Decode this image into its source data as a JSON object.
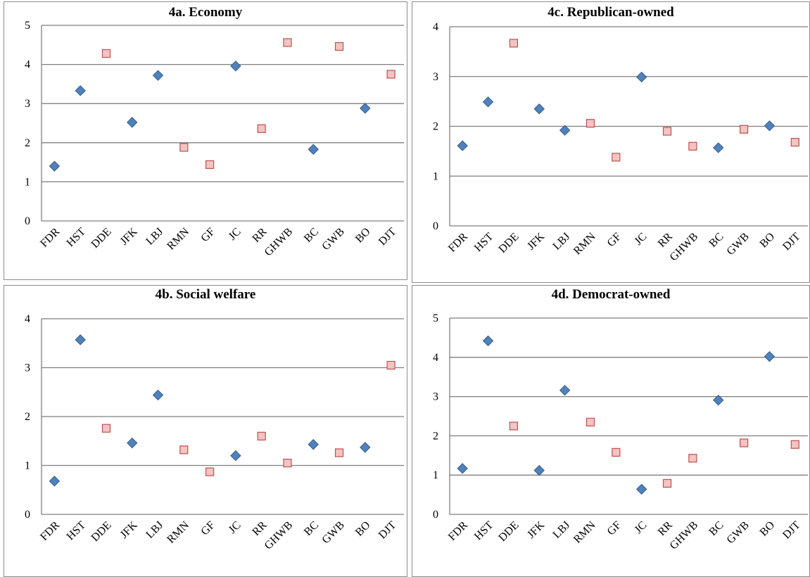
{
  "chart_data": [
    {
      "id": "a",
      "type": "scatter",
      "title": "4a. Economy",
      "categories": [
        "FDR",
        "HST",
        "DDE",
        "JFK",
        "LBJ",
        "RMN",
        "GF",
        "JC",
        "RR",
        "GHWB",
        "BC",
        "GWB",
        "BO",
        "DJT"
      ],
      "values": [
        1.4,
        3.33,
        4.28,
        2.52,
        3.72,
        1.88,
        1.44,
        3.96,
        2.36,
        4.56,
        1.83,
        4.46,
        2.88,
        3.75
      ],
      "party": [
        "D",
        "D",
        "R",
        "D",
        "D",
        "R",
        "R",
        "D",
        "R",
        "R",
        "D",
        "R",
        "D",
        "R"
      ],
      "ylim": [
        0,
        5
      ],
      "yticks": [
        0,
        1,
        2,
        3,
        4,
        5
      ],
      "grid": true,
      "legend": "none"
    },
    {
      "id": "c",
      "type": "scatter",
      "title": "4c. Republican-owned",
      "categories": [
        "FDR",
        "HST",
        "DDE",
        "JFK",
        "LBJ",
        "RMN",
        "GF",
        "JC",
        "RR",
        "GHWB",
        "BC",
        "GWB",
        "BO",
        "DJT"
      ],
      "values": [
        1.61,
        2.49,
        3.67,
        2.35,
        1.92,
        2.06,
        1.38,
        2.99,
        1.9,
        1.6,
        1.57,
        1.94,
        2.01,
        1.68
      ],
      "party": [
        "D",
        "D",
        "R",
        "D",
        "D",
        "R",
        "R",
        "D",
        "R",
        "R",
        "D",
        "R",
        "D",
        "R"
      ],
      "ylim": [
        0,
        4
      ],
      "yticks": [
        0,
        1,
        2,
        3,
        4
      ],
      "grid": true,
      "legend": "none"
    },
    {
      "id": "b",
      "type": "scatter",
      "title": "4b. Social welfare",
      "categories": [
        "FDR",
        "HST",
        "DDE",
        "JFK",
        "LBJ",
        "RMN",
        "GF",
        "JC",
        "RR",
        "GHWB",
        "BC",
        "GWB",
        "BO",
        "DJT"
      ],
      "values": [
        0.68,
        3.57,
        1.76,
        1.46,
        2.44,
        1.32,
        0.87,
        1.2,
        1.6,
        1.05,
        1.43,
        1.26,
        1.37,
        3.05
      ],
      "party": [
        "D",
        "D",
        "R",
        "D",
        "D",
        "R",
        "R",
        "D",
        "R",
        "R",
        "D",
        "R",
        "D",
        "R"
      ],
      "ylim": [
        0,
        4
      ],
      "yticks": [
        0,
        1,
        2,
        3,
        4
      ],
      "grid": true,
      "legend": "none"
    },
    {
      "id": "d",
      "type": "scatter",
      "title": "4d. Democrat-owned",
      "categories": [
        "FDR",
        "HST",
        "DDE",
        "JFK",
        "LBJ",
        "RMN",
        "GF",
        "JC",
        "RR",
        "GHWB",
        "BC",
        "GWB",
        "BO",
        "DJT"
      ],
      "values": [
        1.17,
        4.42,
        2.25,
        1.12,
        3.16,
        2.35,
        1.58,
        0.64,
        0.79,
        1.43,
        2.91,
        1.82,
        4.02,
        1.78
      ],
      "party": [
        "D",
        "D",
        "R",
        "D",
        "D",
        "R",
        "R",
        "D",
        "R",
        "R",
        "D",
        "R",
        "D",
        "R"
      ],
      "ylim": [
        0,
        5
      ],
      "yticks": [
        0,
        1,
        2,
        3,
        4,
        5
      ],
      "grid": true,
      "legend": "none"
    }
  ],
  "colors": {
    "democrat_marker_fill": "#4f81bd",
    "democrat_marker_stroke": "#385d8a",
    "republican_marker_fill": "#f2c4c3",
    "republican_marker_stroke": "#c0504d",
    "gridline": "#7f7f7f"
  },
  "markers": {
    "D": "diamond",
    "R": "square"
  }
}
